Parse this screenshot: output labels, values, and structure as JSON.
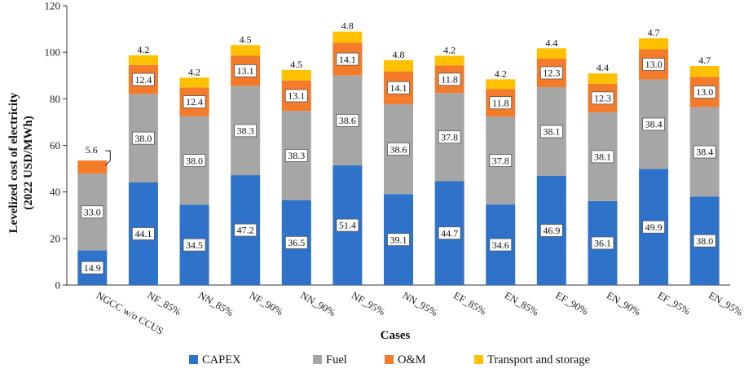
{
  "chart_data": {
    "type": "bar",
    "stacked": true,
    "title": "",
    "xlabel": "Cases",
    "ylabel": "Levelized cost of electricity (2022 USD/MWh)",
    "ylabel_lines": [
      "Levelized cost of electricity",
      "(2022 USD/MWh)"
    ],
    "ylim": [
      0,
      120
    ],
    "yticks": [
      0,
      20,
      40,
      60,
      80,
      100,
      120
    ],
    "grid": false,
    "legend_position": "bottom",
    "categories": [
      "NGCC w/o CCUS",
      "NF_85%",
      "NN_85%",
      "NF_90%",
      "NN_90%",
      "NF_95%",
      "NN_95%",
      "EF_85%",
      "EN_85%",
      "EF_90%",
      "EN_90%",
      "EF_95%",
      "EN_95%"
    ],
    "series": [
      {
        "name": "CAPEX",
        "color": "#2E72C9",
        "values": [
          14.9,
          44.1,
          34.5,
          47.2,
          36.5,
          51.4,
          39.1,
          44.7,
          34.6,
          46.9,
          36.1,
          49.9,
          38.0
        ]
      },
      {
        "name": "Fuel",
        "color": "#A6A6A6",
        "values": [
          33.0,
          38.0,
          38.0,
          38.3,
          38.3,
          38.6,
          38.6,
          37.8,
          37.8,
          38.1,
          38.1,
          38.4,
          38.4
        ]
      },
      {
        "name": "O&M",
        "color": "#F47B2A",
        "values": [
          5.6,
          12.4,
          12.4,
          13.1,
          13.1,
          14.1,
          14.1,
          11.8,
          11.8,
          12.3,
          12.3,
          13.0,
          13.0
        ]
      },
      {
        "name": "Transport and storage",
        "color": "#FFC000",
        "values": [
          0,
          4.2,
          4.2,
          4.5,
          4.5,
          4.8,
          4.8,
          4.2,
          4.2,
          4.4,
          4.4,
          4.7,
          4.7
        ]
      }
    ],
    "segment_labels": {
      "CAPEX": [
        "14.9",
        "44.1",
        "34.5",
        "47.2",
        "36.5",
        "51.4",
        "39.1",
        "44.7",
        "34.6",
        "46.9",
        "36.1",
        "49.9",
        "38.0"
      ],
      "Fuel": [
        "33.0",
        "38.0",
        "38.0",
        "38.3",
        "38.3",
        "38.6",
        "38.6",
        "37.8",
        "37.8",
        "38.1",
        "38.1",
        "38.4",
        "38.4"
      ],
      "O&M": [
        "",
        "12.4",
        "12.4",
        "13.1",
        "13.1",
        "14.1",
        "14.1",
        "11.8",
        "11.8",
        "12.3",
        "12.3",
        "13.0",
        "13.0"
      ],
      "Transport and storage": [
        "",
        "4.2",
        "4.2",
        "4.5",
        "4.5",
        "4.8",
        "4.8",
        "4.2",
        "4.2",
        "4.4",
        "4.4",
        "4.7",
        "4.7"
      ]
    },
    "callouts": [
      {
        "category": "NGCC w/o CCUS",
        "series": "O&M",
        "text": "5.6"
      }
    ],
    "legend": [
      "CAPEX",
      "Fuel",
      "O&M",
      "Transport and storage"
    ]
  }
}
